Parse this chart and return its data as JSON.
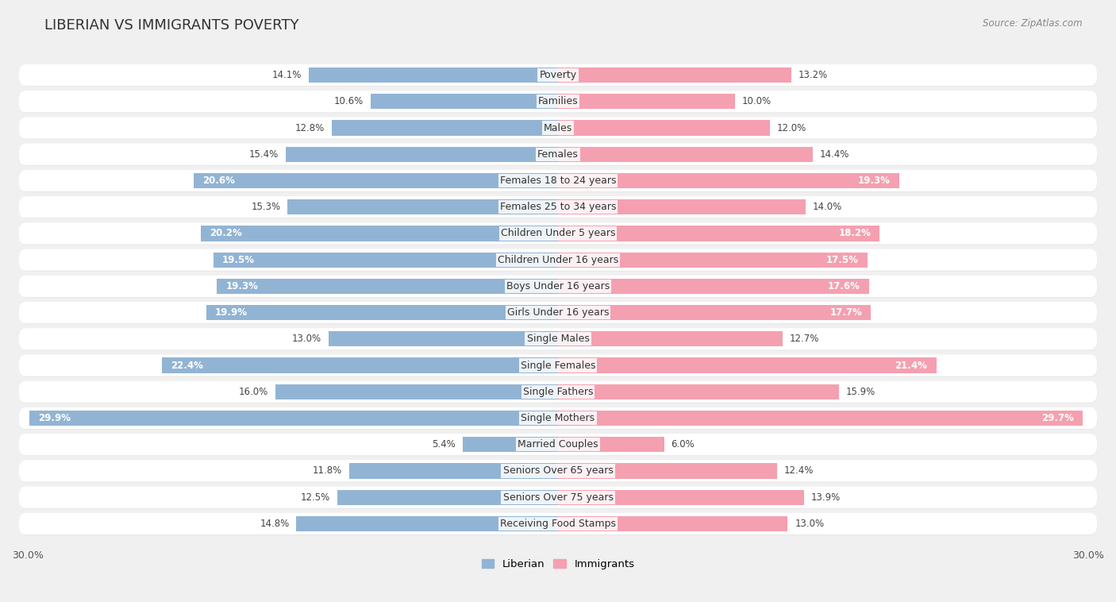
{
  "title": "LIBERIAN VS IMMIGRANTS POVERTY",
  "source": "Source: ZipAtlas.com",
  "categories": [
    "Poverty",
    "Families",
    "Males",
    "Females",
    "Females 18 to 24 years",
    "Females 25 to 34 years",
    "Children Under 5 years",
    "Children Under 16 years",
    "Boys Under 16 years",
    "Girls Under 16 years",
    "Single Males",
    "Single Females",
    "Single Fathers",
    "Single Mothers",
    "Married Couples",
    "Seniors Over 65 years",
    "Seniors Over 75 years",
    "Receiving Food Stamps"
  ],
  "liberian": [
    14.1,
    10.6,
    12.8,
    15.4,
    20.6,
    15.3,
    20.2,
    19.5,
    19.3,
    19.9,
    13.0,
    22.4,
    16.0,
    29.9,
    5.4,
    11.8,
    12.5,
    14.8
  ],
  "immigrants": [
    13.2,
    10.0,
    12.0,
    14.4,
    19.3,
    14.0,
    18.2,
    17.5,
    17.6,
    17.7,
    12.7,
    21.4,
    15.9,
    29.7,
    6.0,
    12.4,
    13.9,
    13.0
  ],
  "liberian_color": "#92b4d4",
  "immigrants_color": "#f4a0b0",
  "background_color": "#f0f0f0",
  "row_bg_color": "#ffffff",
  "row_bg_shadow": "#e0e0e0",
  "axis_max": 30.0,
  "bar_height": 0.58,
  "title_fontsize": 13,
  "label_fontsize": 9,
  "value_fontsize": 8.5,
  "inside_label_threshold_liberian": 18.0,
  "inside_label_threshold_immigrants": 17.0
}
